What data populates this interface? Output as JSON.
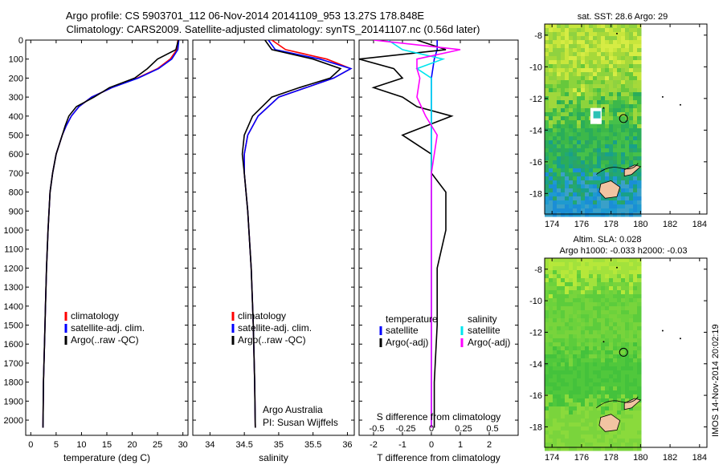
{
  "header": {
    "line1": "Argo profile: CS 5903701_112 06-Nov-2014 20141109_953 13.27S 178.848E",
    "line2": "Climatology: CARS2009. Satellite-adjusted climatology: synTS_20141107.nc (0.56d later)"
  },
  "side_stamp": "IMOS 14-Nov-2014 20:02:19",
  "credit": {
    "line1": "Argo Australia",
    "line2": "PI: Susan Wijffels"
  },
  "colors": {
    "climatology": "#ff0000",
    "satellite": "#0000ff",
    "argo": "#000000",
    "sal_satellite": "#00e5ee",
    "sal_argo": "#ff00ff",
    "sal_cyan": "#33ddee"
  },
  "chart_data": [
    {
      "id": "temperature",
      "type": "line",
      "xlabel": "temperature (deg C)",
      "xlim": [
        -1,
        31
      ],
      "ylim": [
        2080,
        0
      ],
      "xticks": [
        0,
        5,
        10,
        15,
        20,
        25,
        30
      ],
      "yticks": [
        0,
        100,
        200,
        300,
        400,
        500,
        600,
        700,
        800,
        900,
        1000,
        1100,
        1200,
        1300,
        1400,
        1500,
        1600,
        1700,
        1800,
        1900,
        2000
      ],
      "legend": [
        "climatology",
        "satellite-adj. clim.",
        "Argo(..raw -QC)"
      ],
      "legend_colors": [
        "#ff0000",
        "#0000ff",
        "#000000"
      ],
      "series": [
        {
          "name": "climatology",
          "color": "#ff0000",
          "x": [
            29.0,
            28.8,
            27.5,
            25,
            21,
            16,
            12,
            9.5,
            8,
            7,
            6.2,
            5,
            4.3,
            3.8,
            3.4,
            3.1,
            2.9,
            2.7,
            2.5,
            2.4
          ],
          "y": [
            0,
            50,
            100,
            150,
            200,
            250,
            300,
            350,
            400,
            450,
            500,
            600,
            700,
            800,
            1000,
            1200,
            1400,
            1600,
            1800,
            2040
          ]
        },
        {
          "name": "satellite-adj. clim.",
          "color": "#0000ff",
          "x": [
            29.2,
            29.0,
            27.8,
            25.2,
            21.2,
            16,
            12,
            9.5,
            8,
            7,
            6.2,
            5,
            4.3,
            3.8,
            3.4,
            3.1,
            2.9,
            2.7,
            2.5,
            2.4
          ],
          "y": [
            0,
            50,
            100,
            150,
            200,
            250,
            300,
            350,
            400,
            450,
            500,
            600,
            700,
            800,
            1000,
            1200,
            1400,
            1600,
            1800,
            2040
          ]
        },
        {
          "name": "Argo(..raw -QC)",
          "color": "#000000",
          "x": [
            29.1,
            28.6,
            25,
            23,
            20.5,
            15.5,
            12.5,
            9,
            7.5,
            6.8,
            6.2,
            5,
            4.3,
            3.8,
            3.4,
            3.1,
            2.9,
            2.7,
            2.5,
            2.4
          ],
          "y": [
            0,
            50,
            100,
            150,
            200,
            250,
            300,
            350,
            400,
            450,
            500,
            600,
            700,
            800,
            1000,
            1200,
            1400,
            1600,
            1800,
            2040
          ]
        }
      ]
    },
    {
      "id": "salinity",
      "type": "line",
      "xlabel": "salinity",
      "xlim": [
        33.75,
        36.1
      ],
      "ylim": [
        2080,
        0
      ],
      "xticks": [
        34,
        34.5,
        35,
        35.5,
        36
      ],
      "legend": [
        "climatology",
        "satellite-adj. clim.",
        "Argo(..raw -QC)"
      ],
      "legend_colors": [
        "#ff0000",
        "#0000ff",
        "#000000"
      ],
      "series": [
        {
          "name": "climatology",
          "color": "#ff0000",
          "x": [
            34.9,
            35.1,
            35.7,
            36.05,
            35.8,
            35.4,
            35.0,
            34.7,
            34.55,
            34.5,
            34.5,
            34.55,
            34.6,
            34.63,
            34.65,
            34.66
          ],
          "y": [
            0,
            50,
            100,
            150,
            200,
            250,
            300,
            400,
            500,
            600,
            700,
            900,
            1200,
            1500,
            1800,
            2040
          ]
        },
        {
          "name": "satellite-adj. clim.",
          "color": "#0000ff",
          "x": [
            34.85,
            34.95,
            35.6,
            36.05,
            35.8,
            35.4,
            35.0,
            34.7,
            34.55,
            34.5,
            34.5,
            34.55,
            34.6,
            34.63,
            34.65,
            34.66
          ],
          "y": [
            0,
            50,
            100,
            150,
            200,
            250,
            300,
            400,
            500,
            600,
            700,
            900,
            1200,
            1500,
            1800,
            2040
          ]
        },
        {
          "name": "Argo(..raw -QC)",
          "color": "#000000",
          "x": [
            34.8,
            34.9,
            35.5,
            35.9,
            35.75,
            35.3,
            34.9,
            34.62,
            34.5,
            34.47,
            34.5,
            34.55,
            34.6,
            34.63,
            34.65,
            34.66
          ],
          "y": [
            0,
            50,
            100,
            150,
            200,
            250,
            300,
            400,
            500,
            600,
            700,
            900,
            1200,
            1500,
            1800,
            2040
          ]
        }
      ]
    },
    {
      "id": "difference",
      "type": "line",
      "xlabel": "T difference from climatology",
      "sublabel": "S difference from climatology",
      "xlim": [
        -2.5,
        3
      ],
      "ylim": [
        2080,
        0
      ],
      "xticks": [
        -2,
        -1,
        0,
        1,
        2
      ],
      "sticks_label": [
        "-0.5",
        "-0.25",
        "0",
        "0.25",
        "0.5"
      ],
      "sticks_pos": [
        -2,
        -1,
        0,
        1,
        2
      ],
      "legend_titles": [
        "temperature",
        "salinity"
      ],
      "legend_left": [
        "satellite",
        "Argo(-adj)"
      ],
      "legend_right": [
        "satellite",
        "Argo(-adj)"
      ],
      "series": [
        {
          "name": "T satellite",
          "color": "#0000ff",
          "x": [
            0.2,
            0.2,
            0.1,
            0,
            0,
            0,
            0,
            0,
            0,
            0,
            0,
            0,
            0,
            0
          ],
          "y": [
            0,
            50,
            100,
            200,
            300,
            400,
            500,
            700,
            900,
            1200,
            1500,
            1800,
            2000,
            2040
          ]
        },
        {
          "name": "T Argo(-adj)",
          "color": "#000000",
          "x": [
            -0.5,
            0.5,
            -2.5,
            -1.3,
            -1,
            -2,
            -1,
            -0.5,
            0.7,
            -1,
            0,
            0,
            0.5,
            0.5,
            0.2,
            0.2,
            0.1,
            0.1
          ],
          "y": [
            0,
            50,
            100,
            150,
            200,
            250,
            300,
            350,
            400,
            500,
            600,
            700,
            800,
            1000,
            1200,
            1500,
            1800,
            2040
          ]
        },
        {
          "name": "S satellite",
          "color": "#00e5ee",
          "x": [
            -1.5,
            -1,
            0.4,
            -0.5,
            0,
            0,
            0,
            0,
            0,
            0,
            0,
            0,
            0
          ],
          "y": [
            0,
            50,
            100,
            150,
            200,
            300,
            500,
            700,
            900,
            1200,
            1500,
            1800,
            2040
          ]
        },
        {
          "name": "S Argo(-adj)",
          "color": "#ff00ff",
          "x": [
            -2,
            1,
            -0.5,
            -0.5,
            -0.4,
            -0.5,
            -0.2,
            0.2,
            0,
            0,
            0,
            0,
            0
          ],
          "y": [
            0,
            50,
            100,
            150,
            200,
            300,
            400,
            500,
            700,
            900,
            1200,
            1600,
            2040
          ]
        }
      ]
    }
  ],
  "maps": [
    {
      "id": "sst-map",
      "title": "sat. SST: 28.6 Argo: 29",
      "title2": "",
      "xticks": [
        "174",
        "176",
        "178",
        "180",
        "182",
        "184"
      ],
      "yticks": [
        "-8",
        "-10",
        "-12",
        "-14",
        "-16",
        "-18"
      ]
    },
    {
      "id": "sla-map",
      "title": "Altim. SLA: 0.028",
      "title2": "Argo h1000: -0.033 h2000: -0.03",
      "xticks": [
        "174",
        "176",
        "178",
        "180",
        "182",
        "184"
      ],
      "yticks": [
        "-8",
        "-10",
        "-12",
        "-14",
        "-16",
        "-18"
      ]
    }
  ]
}
